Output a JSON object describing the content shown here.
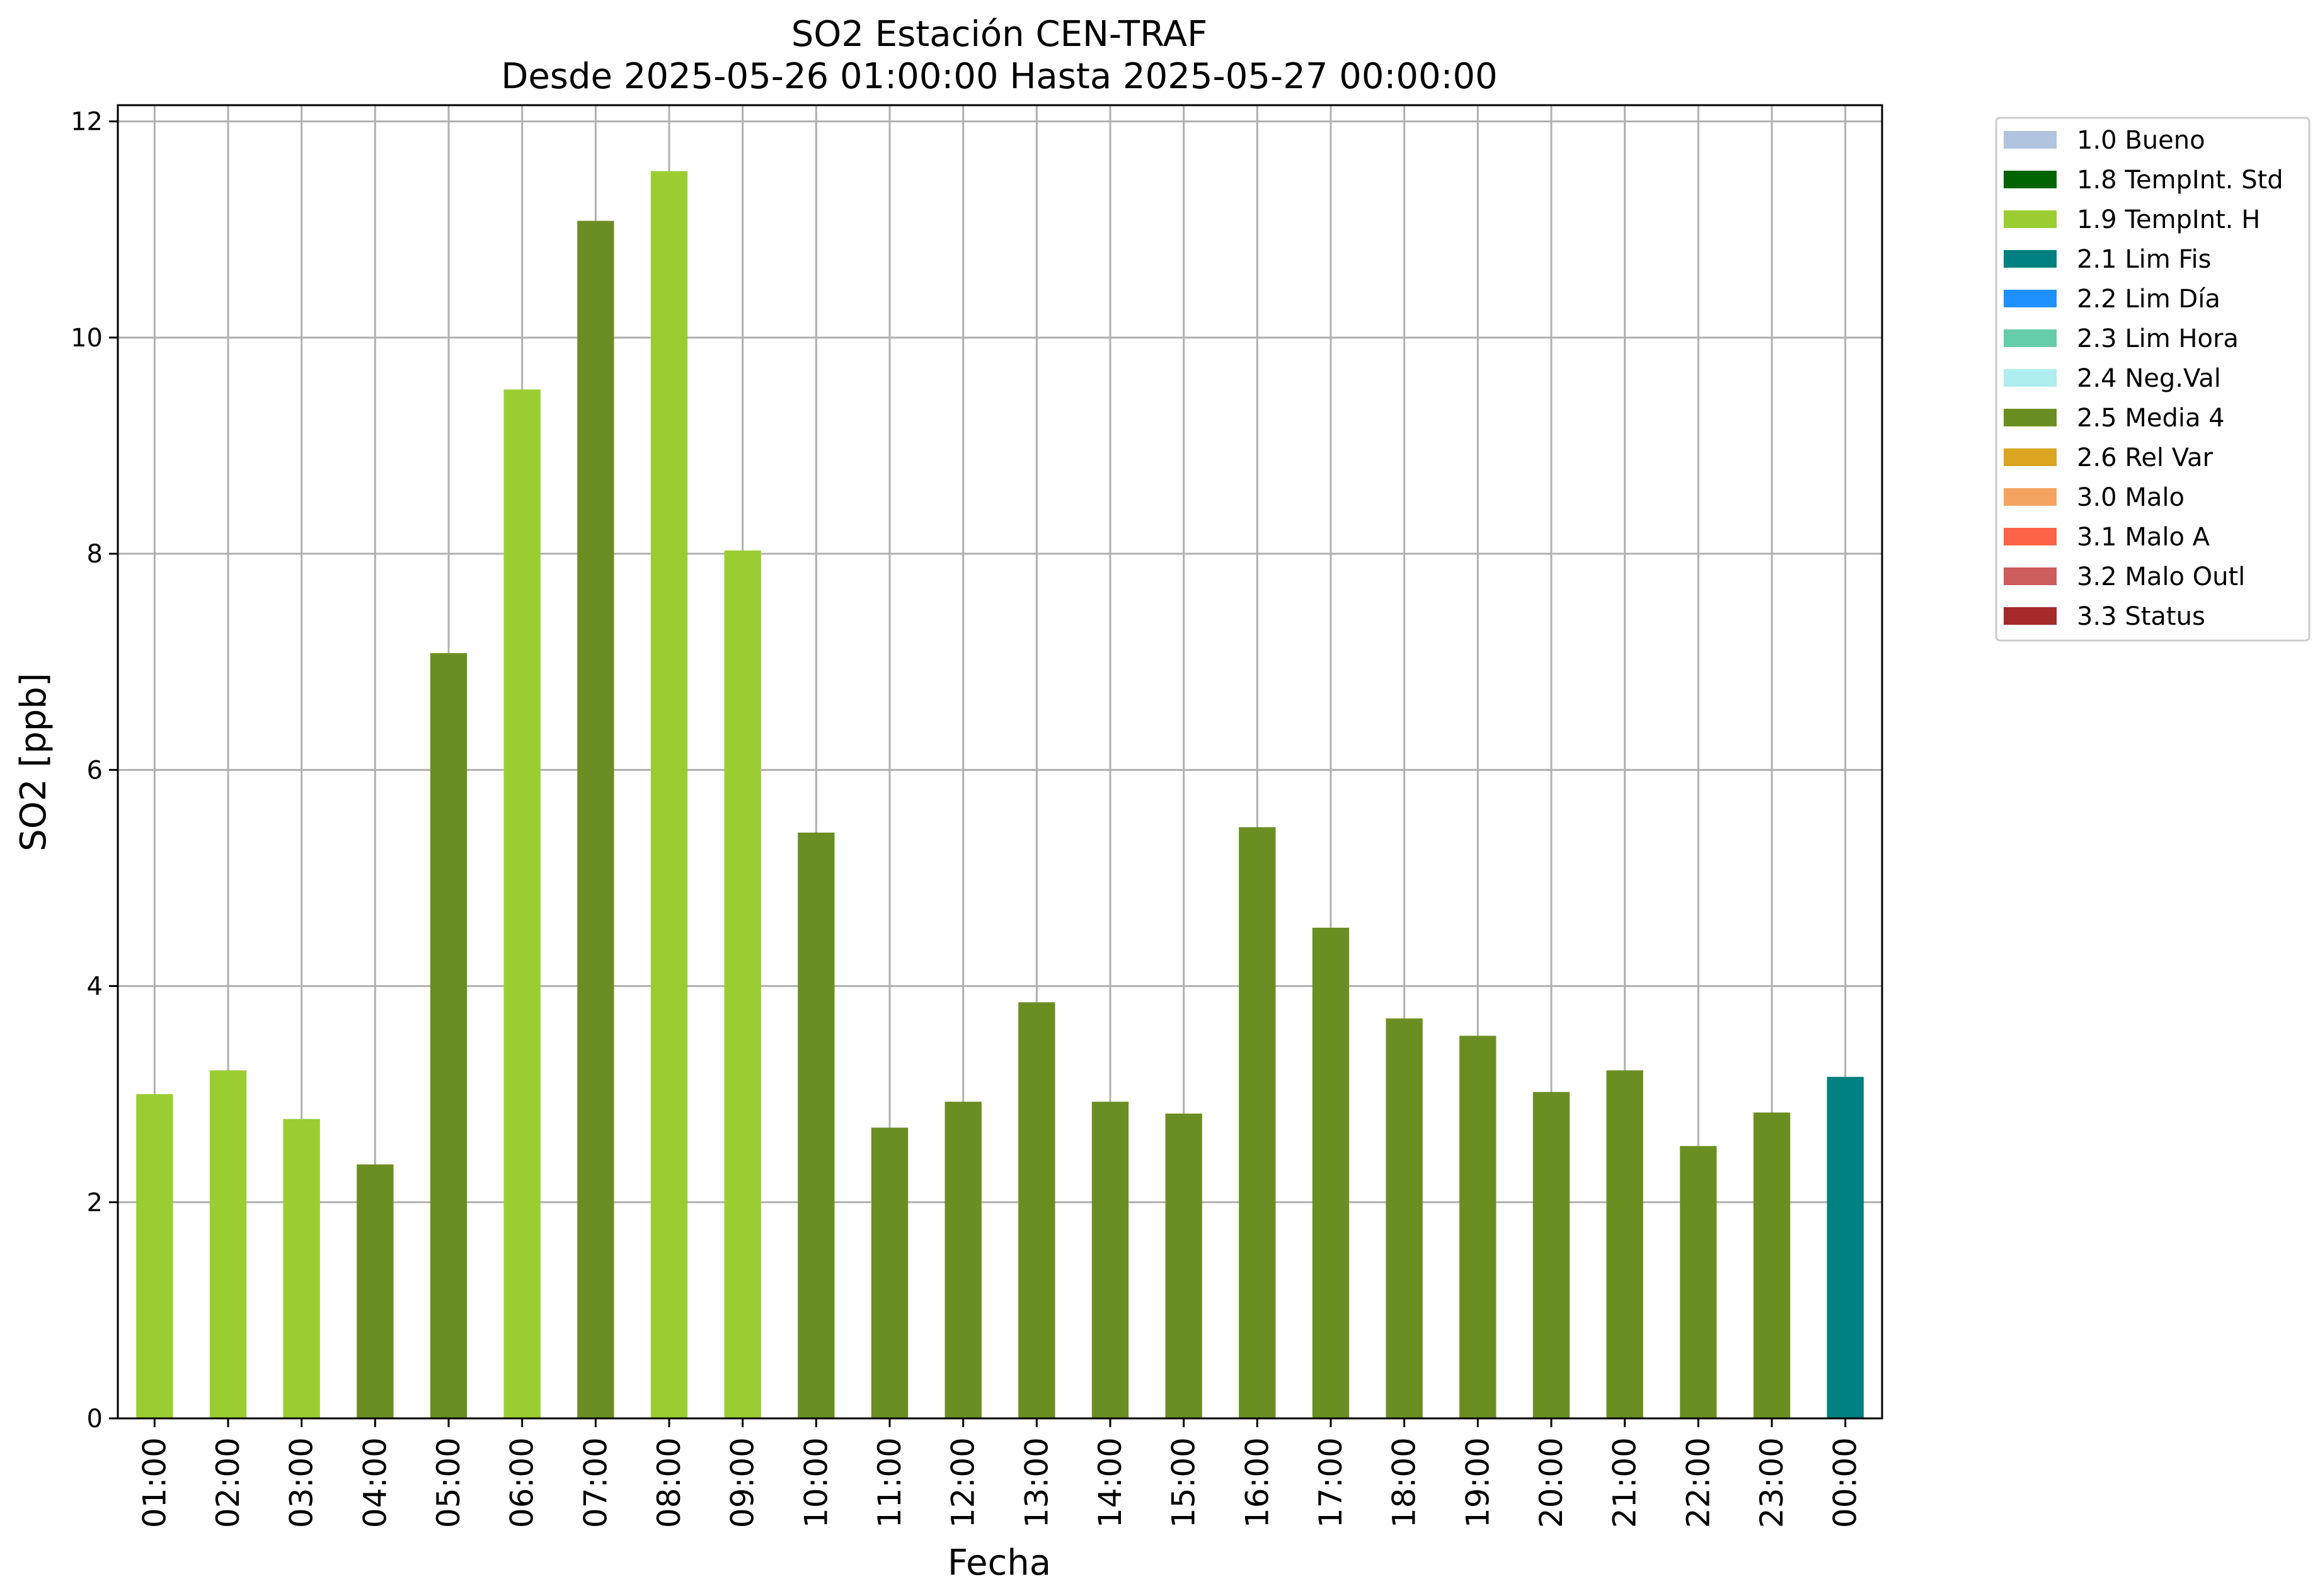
{
  "chart_data": {
    "type": "bar",
    "title": "SO2 Estación CEN-TRAF",
    "subtitle": "Desde 2025-05-26 01:00:00 Hasta 2025-05-27 00:00:00",
    "xlabel": "Fecha",
    "ylabel": "SO2 [ppb]",
    "ylim": [
      0,
      12.15
    ],
    "yticks": [
      0,
      2,
      4,
      6,
      8,
      10,
      12
    ],
    "grid": true,
    "legend_position": "outside-top-right",
    "categories": [
      "01:00",
      "02:00",
      "03:00",
      "04:00",
      "05:00",
      "06:00",
      "07:00",
      "08:00",
      "09:00",
      "10:00",
      "11:00",
      "12:00",
      "13:00",
      "14:00",
      "15:00",
      "16:00",
      "17:00",
      "18:00",
      "19:00",
      "20:00",
      "21:00",
      "22:00",
      "23:00",
      "00:00"
    ],
    "values": [
      3.0,
      3.22,
      2.77,
      2.35,
      7.08,
      9.52,
      11.08,
      11.54,
      8.03,
      5.42,
      2.69,
      2.93,
      3.85,
      2.93,
      2.82,
      5.47,
      4.54,
      3.7,
      3.54,
      3.02,
      3.22,
      2.52,
      2.83,
      3.16
    ],
    "flags": [
      "1.9 TempInt. H",
      "1.9 TempInt. H",
      "1.9 TempInt. H",
      "2.5 Media 4",
      "2.5 Media 4",
      "1.9 TempInt. H",
      "2.5 Media 4",
      "1.9 TempInt. H",
      "1.9 TempInt. H",
      "2.5 Media 4",
      "2.5 Media 4",
      "2.5 Media 4",
      "2.5 Media 4",
      "2.5 Media 4",
      "2.5 Media 4",
      "2.5 Media 4",
      "2.5 Media 4",
      "2.5 Media 4",
      "2.5 Media 4",
      "2.5 Media 4",
      "2.5 Media 4",
      "2.5 Media 4",
      "2.5 Media 4",
      "2.1 Lim Fis"
    ],
    "legend": [
      {
        "label": "1.0 Bueno",
        "color": "#b0c4de"
      },
      {
        "label": "1.8 TempInt. Std",
        "color": "#006400"
      },
      {
        "label": "1.9 TempInt. H",
        "color": "#9acd32"
      },
      {
        "label": "2.1 Lim Fis",
        "color": "#008080"
      },
      {
        "label": "2.2 Lim Día",
        "color": "#1e90ff"
      },
      {
        "label": "2.3 Lim Hora",
        "color": "#66cdaa"
      },
      {
        "label": "2.4 Neg.Val",
        "color": "#afeeee"
      },
      {
        "label": "2.5 Media 4",
        "color": "#6b8e23"
      },
      {
        "label": "2.6 Rel Var",
        "color": "#daa520"
      },
      {
        "label": "3.0 Malo",
        "color": "#f4a460"
      },
      {
        "label": "3.1 Malo A",
        "color": "#ff6347"
      },
      {
        "label": "3.2 Malo Outl",
        "color": "#cd5c5c"
      },
      {
        "label": "3.3 Status",
        "color": "#a52a2a"
      }
    ]
  }
}
